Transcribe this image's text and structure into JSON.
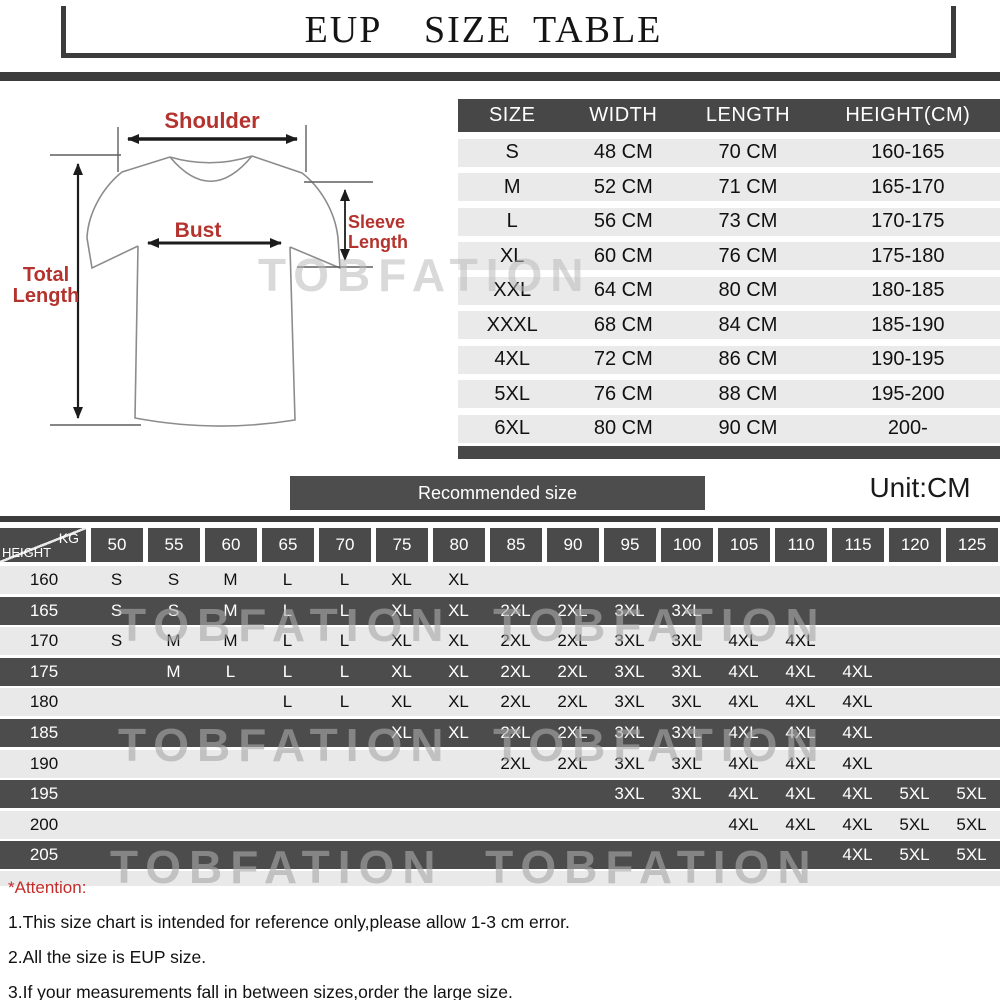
{
  "title": "EUP  SIZE TABLE",
  "diagram": {
    "shoulder_label": "Shoulder",
    "bust_label": "Bust",
    "sleeve_label_line1": "Sleeve",
    "sleeve_label_line2": "Length",
    "total_label_line1": "Total",
    "total_label_line2": "Length"
  },
  "size_table": {
    "headers": [
      "SIZE",
      "WIDTH",
      "LENGTH",
      "HEIGHT(CM)"
    ],
    "rows": [
      [
        "S",
        "48 CM",
        "70 CM",
        "160-165"
      ],
      [
        "M",
        "52 CM",
        "71 CM",
        "165-170"
      ],
      [
        "L",
        "56 CM",
        "73 CM",
        "170-175"
      ],
      [
        "XL",
        "60 CM",
        "76 CM",
        "175-180"
      ],
      [
        "XXL",
        "64 CM",
        "80 CM",
        "180-185"
      ],
      [
        "XXXL",
        "68 CM",
        "84 CM",
        "185-190"
      ],
      [
        "4XL",
        "72 CM",
        "86 CM",
        "190-195"
      ],
      [
        "5XL",
        "76 CM",
        "88 CM",
        "195-200"
      ],
      [
        "6XL",
        "80 CM",
        "90 CM",
        "200-"
      ]
    ]
  },
  "recommended": {
    "button_label": "Recommended size",
    "unit_label": "Unit:CM"
  },
  "matrix": {
    "corner": {
      "top_right": "KG",
      "bottom_left": "HEIGHT"
    },
    "kg_columns": [
      "50",
      "55",
      "60",
      "65",
      "70",
      "75",
      "80",
      "85",
      "90",
      "95",
      "100",
      "105",
      "110",
      "115",
      "120",
      "125"
    ],
    "rows": [
      {
        "height": "160",
        "cells": [
          "S",
          "S",
          "M",
          "L",
          "L",
          "XL",
          "XL",
          "",
          "",
          "",
          "",
          "",
          "",
          "",
          "",
          ""
        ]
      },
      {
        "height": "165",
        "cells": [
          "S",
          "S",
          "M",
          "L",
          "L",
          "XL",
          "XL",
          "2XL",
          "2XL",
          "3XL",
          "3XL",
          "",
          "",
          "",
          "",
          ""
        ]
      },
      {
        "height": "170",
        "cells": [
          "S",
          "M",
          "M",
          "L",
          "L",
          "XL",
          "XL",
          "2XL",
          "2XL",
          "3XL",
          "3XL",
          "4XL",
          "4XL",
          "",
          "",
          ""
        ]
      },
      {
        "height": "175",
        "cells": [
          "",
          "M",
          "L",
          "L",
          "L",
          "XL",
          "XL",
          "2XL",
          "2XL",
          "3XL",
          "3XL",
          "4XL",
          "4XL",
          "4XL",
          "",
          ""
        ]
      },
      {
        "height": "180",
        "cells": [
          "",
          "",
          "",
          "L",
          "L",
          "XL",
          "XL",
          "2XL",
          "2XL",
          "3XL",
          "3XL",
          "4XL",
          "4XL",
          "4XL",
          "",
          ""
        ]
      },
      {
        "height": "185",
        "cells": [
          "",
          "",
          "",
          "",
          "",
          "XL",
          "XL",
          "2XL",
          "2XL",
          "3XL",
          "3XL",
          "4XL",
          "4XL",
          "4XL",
          "",
          ""
        ]
      },
      {
        "height": "190",
        "cells": [
          "",
          "",
          "",
          "",
          "",
          "",
          "",
          "2XL",
          "2XL",
          "3XL",
          "3XL",
          "4XL",
          "4XL",
          "4XL",
          "",
          ""
        ]
      },
      {
        "height": "195",
        "cells": [
          "",
          "",
          "",
          "",
          "",
          "",
          "",
          "",
          "",
          "3XL",
          "3XL",
          "4XL",
          "4XL",
          "4XL",
          "5XL",
          "5XL"
        ]
      },
      {
        "height": "200",
        "cells": [
          "",
          "",
          "",
          "",
          "",
          "",
          "",
          "",
          "",
          "",
          "",
          "4XL",
          "4XL",
          "4XL",
          "5XL",
          "5XL"
        ]
      },
      {
        "height": "205",
        "cells": [
          "",
          "",
          "",
          "",
          "",
          "",
          "",
          "",
          "",
          "",
          "",
          "",
          "",
          "4XL",
          "5XL",
          "5XL"
        ]
      }
    ]
  },
  "watermarks": {
    "brand": "TOBFATION",
    "matrix_text": "TOBFATION  TOBFATION"
  },
  "attention": {
    "heading": "*Attention:",
    "notes": [
      "1.This size chart is intended for reference only,please allow 1-3 cm error.",
      "2.All the size is EUP size.",
      "3.If your measurements fall in between sizes,order the large size."
    ]
  },
  "colors": {
    "dark_bar": "#3c3c3c",
    "table_header_bg": "#474747",
    "matrix_header_bg": "#4a4a4a",
    "row_light": "#e9e9e9",
    "row_dark": "#4c4c4c",
    "accent_red": "#b5332e",
    "attention_red": "#c52b28",
    "watermark_gray": "#a8a8a8"
  }
}
